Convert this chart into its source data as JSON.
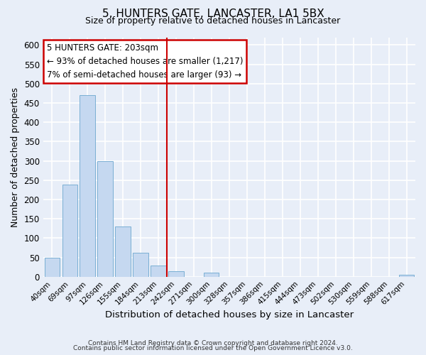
{
  "title1": "5, HUNTERS GATE, LANCASTER, LA1 5BX",
  "title2": "Size of property relative to detached houses in Lancaster",
  "xlabel": "Distribution of detached houses by size in Lancaster",
  "ylabel": "Number of detached properties",
  "bar_color": "#c5d8f0",
  "bar_edge_color": "#7aafd4",
  "categories": [
    "40sqm",
    "69sqm",
    "97sqm",
    "126sqm",
    "155sqm",
    "184sqm",
    "213sqm",
    "242sqm",
    "271sqm",
    "300sqm",
    "328sqm",
    "357sqm",
    "386sqm",
    "415sqm",
    "444sqm",
    "473sqm",
    "502sqm",
    "530sqm",
    "559sqm",
    "588sqm",
    "617sqm"
  ],
  "values": [
    50,
    238,
    471,
    300,
    130,
    62,
    28,
    15,
    0,
    10,
    0,
    0,
    0,
    0,
    0,
    0,
    0,
    0,
    0,
    0,
    5
  ],
  "ylim": [
    0,
    620
  ],
  "yticks": [
    0,
    50,
    100,
    150,
    200,
    250,
    300,
    350,
    400,
    450,
    500,
    550,
    600
  ],
  "vline_index": 6,
  "annotation_title": "5 HUNTERS GATE: 203sqm",
  "annotation_line1": "← 93% of detached houses are smaller (1,217)",
  "annotation_line2": "7% of semi-detached houses are larger (93) →",
  "annotation_box_facecolor": "#ffffff",
  "annotation_box_edgecolor": "#cc0000",
  "footer1": "Contains HM Land Registry data © Crown copyright and database right 2024.",
  "footer2": "Contains public sector information licensed under the Open Government Licence v3.0.",
  "background_color": "#e8eef8",
  "grid_color": "#ffffff",
  "title1_fontsize": 11,
  "title2_fontsize": 9
}
